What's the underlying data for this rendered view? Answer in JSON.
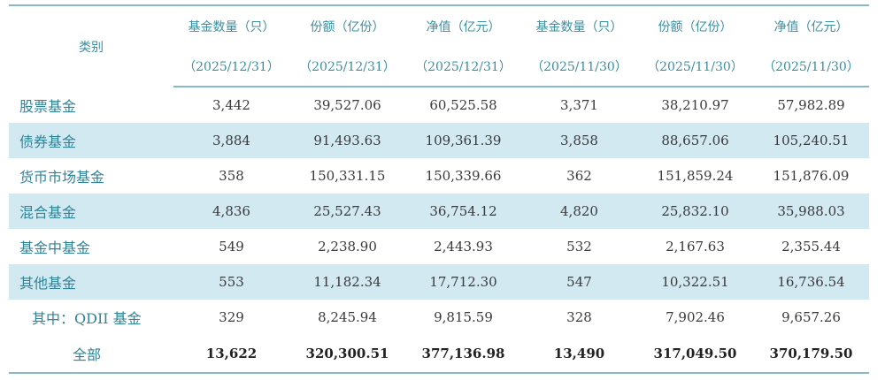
{
  "header": {
    "category": "类别",
    "columns": [
      {
        "label": "基金数量（只）",
        "date": "（2025/12/31）"
      },
      {
        "label": "份额（亿份）",
        "date": "（2025/12/31）"
      },
      {
        "label": "净值（亿元）",
        "date": "（2025/12/31）"
      },
      {
        "label": "基金数量（只）",
        "date": "（2025/11/30）"
      },
      {
        "label": "份额（亿份）",
        "date": "（2025/11/30）"
      },
      {
        "label": "净值（亿元）",
        "date": "（2025/11/30）"
      }
    ]
  },
  "rows": [
    {
      "category": "股票基金",
      "values": [
        "3,442",
        "39,527.06",
        "60,525.58",
        "3,371",
        "38,210.97",
        "57,982.89"
      ]
    },
    {
      "category": "债券基金",
      "values": [
        "3,884",
        "91,493.63",
        "109,361.39",
        "3,858",
        "88,657.06",
        "105,240.51"
      ]
    },
    {
      "category": "货币市场基金",
      "values": [
        "358",
        "150,331.15",
        "150,339.66",
        "362",
        "151,859.24",
        "151,876.09"
      ]
    },
    {
      "category": "混合基金",
      "values": [
        "4,836",
        "25,527.43",
        "36,754.12",
        "4,820",
        "25,832.10",
        "35,988.03"
      ]
    },
    {
      "category": "基金中基金",
      "values": [
        "549",
        "2,238.90",
        "2,443.93",
        "532",
        "2,167.63",
        "2,355.44"
      ]
    },
    {
      "category": "其他基金",
      "values": [
        "553",
        "11,182.34",
        "17,712.30",
        "547",
        "10,322.51",
        "16,736.54"
      ]
    },
    {
      "category": "其中：QDII 基金",
      "values": [
        "329",
        "8,245.94",
        "9,815.59",
        "328",
        "7,902.46",
        "9,657.26"
      ]
    },
    {
      "category": "全部",
      "values": [
        "13,622",
        "320,300.51",
        "377,136.98",
        "13,490",
        "317,049.50",
        "370,179.50"
      ]
    }
  ],
  "colors": {
    "header_text": "#3a8fa0",
    "row_shade": "#d3e9f1",
    "border": "#86b8c6"
  }
}
